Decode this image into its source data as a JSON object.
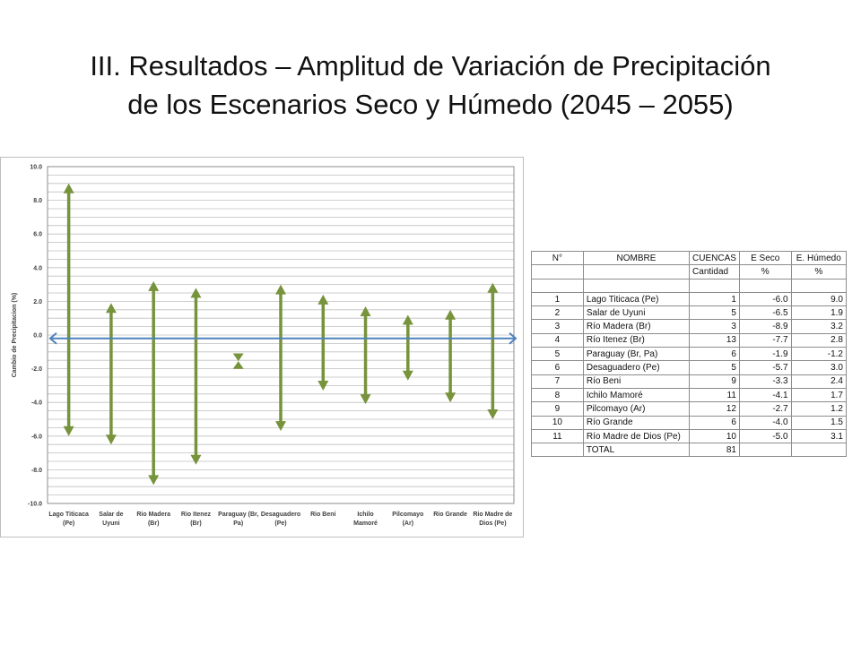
{
  "slide": {
    "title_line1": "III. Resultados – Amplitud de Variación de Precipitación",
    "title_line2": "de los Escenarios Seco y Húmedo (2045 – 2055)"
  },
  "chart_data": {
    "type": "range",
    "ylabel": "Cambio de Precipitacion (%)",
    "ylim": [
      -10,
      10
    ],
    "y_ticks": [
      "10.0",
      "8.0",
      "6.0",
      "4.0",
      "2.0",
      "0.0",
      "-2.0",
      "-4.0",
      "-6.0",
      "-8.0",
      "-10.0"
    ],
    "grid": true,
    "categories": [
      [
        "Lago Titicaca",
        "(Pe)"
      ],
      [
        "Salar de",
        "Uyuni"
      ],
      [
        "Rio Madera",
        "(Br)"
      ],
      [
        "Rio Itenez",
        "(Br)"
      ],
      [
        "Paraguay (Br,",
        "Pa)"
      ],
      [
        "Desaguadero",
        "(Pe)"
      ],
      [
        "Rio Beni"
      ],
      [
        "Ichilo",
        "Mamoré"
      ],
      [
        "Pilcomayo",
        "(Ar)"
      ],
      [
        "Rio Grande"
      ],
      [
        "Rio Madre de",
        "Dios (Pe)"
      ]
    ],
    "seco": [
      -6.0,
      -6.5,
      -8.9,
      -7.7,
      -1.9,
      -5.7,
      -3.3,
      -4.1,
      -2.7,
      -4.0,
      -5.0
    ],
    "humedo": [
      9.0,
      1.9,
      3.2,
      2.8,
      -1.2,
      3.0,
      2.4,
      1.7,
      1.2,
      1.5,
      3.1
    ],
    "range_color": "#77933c",
    "zero_line_color": "#4f81bd",
    "grid_color": "#bfbfbf"
  },
  "table": {
    "headers": {
      "no": "N°",
      "name": "NOMBRE",
      "cuencas": "CUENCAS",
      "seco": "E Seco",
      "humedo": "E. Húmedo"
    },
    "subheaders": {
      "cuencas": "Cantidad",
      "seco": "%",
      "humedo": "%"
    },
    "rows": [
      {
        "no": "1",
        "name": "Lago Titicaca (Pe)",
        "cuencas": "1",
        "seco": "-6.0",
        "humedo": "9.0"
      },
      {
        "no": "2",
        "name": "Salar de Uyuni",
        "cuencas": "5",
        "seco": "-6.5",
        "humedo": "1.9"
      },
      {
        "no": "3",
        "name": "Río Madera (Br)",
        "cuencas": "3",
        "seco": "-8.9",
        "humedo": "3.2"
      },
      {
        "no": "4",
        "name": "Río Itenez (Br)",
        "cuencas": "13",
        "seco": "-7.7",
        "humedo": "2.8"
      },
      {
        "no": "5",
        "name": "Paraguay (Br, Pa)",
        "cuencas": "6",
        "seco": "-1.9",
        "humedo": "-1.2"
      },
      {
        "no": "6",
        "name": "Desaguadero (Pe)",
        "cuencas": "5",
        "seco": "-5.7",
        "humedo": "3.0"
      },
      {
        "no": "7",
        "name": "Río Beni",
        "cuencas": "9",
        "seco": "-3.3",
        "humedo": "2.4"
      },
      {
        "no": "8",
        "name": "Ichilo Mamoré",
        "cuencas": "11",
        "seco": "-4.1",
        "humedo": "1.7"
      },
      {
        "no": "9",
        "name": "Pilcomayo (Ar)",
        "cuencas": "12",
        "seco": "-2.7",
        "humedo": "1.2"
      },
      {
        "no": "10",
        "name": "Río Grande",
        "cuencas": "6",
        "seco": "-4.0",
        "humedo": "1.5"
      },
      {
        "no": "11",
        "name": "Río Madre de Dios (Pe)",
        "cuencas": "10",
        "seco": "-5.0",
        "humedo": "3.1"
      }
    ],
    "total_label": "TOTAL",
    "total_value": "81"
  }
}
